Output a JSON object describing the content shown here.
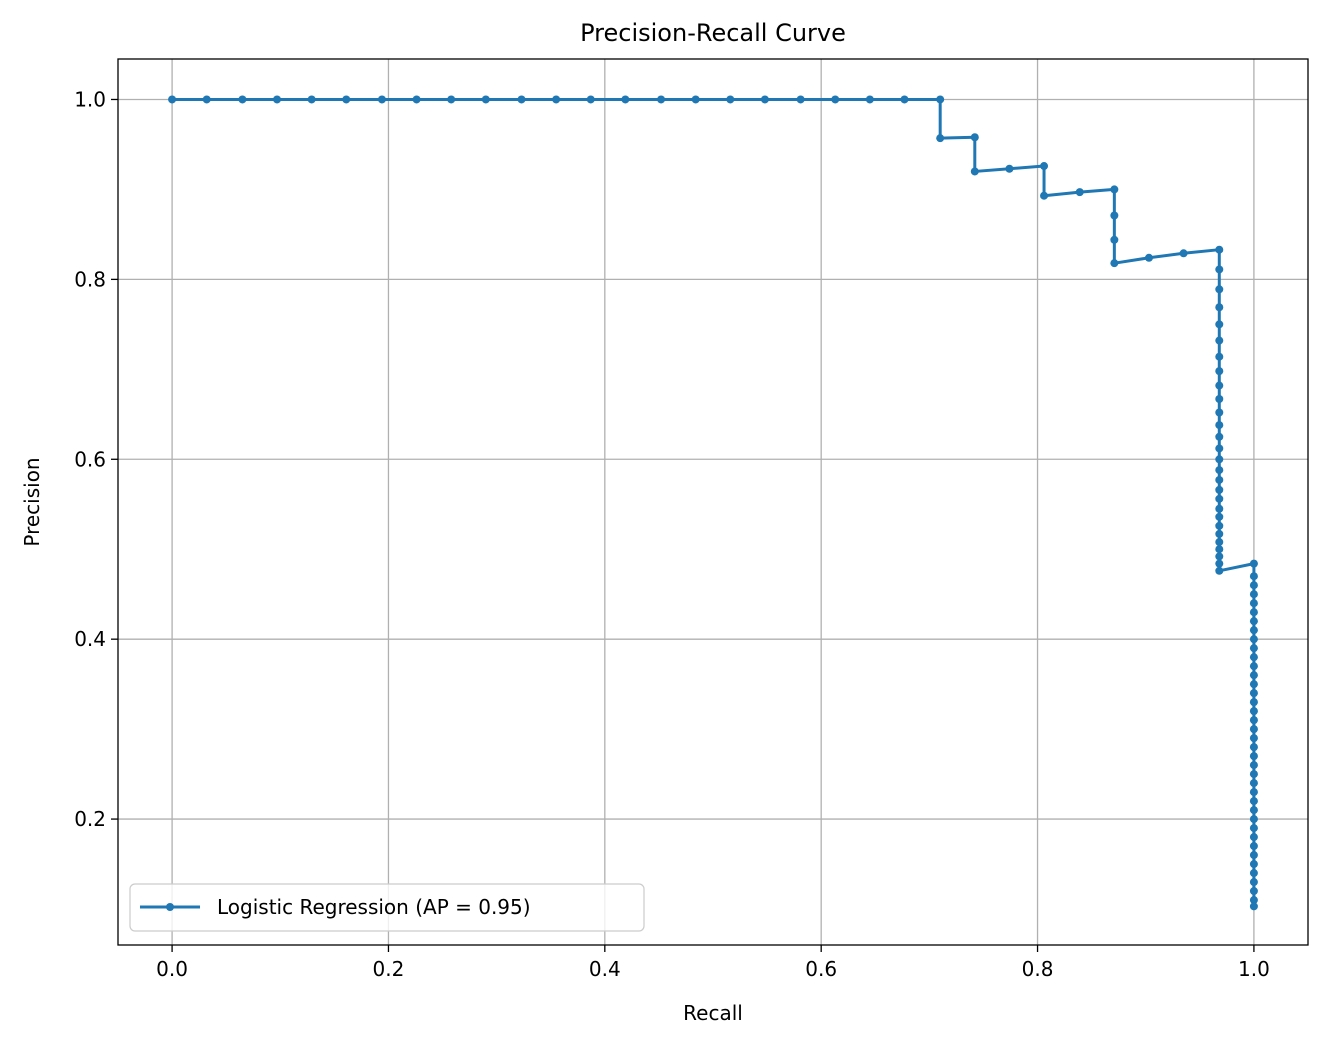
{
  "chart_data": {
    "type": "line",
    "title": "Precision-Recall Curve",
    "xlabel": "Recall",
    "ylabel": "Precision",
    "xlim": [
      -0.05,
      1.05
    ],
    "ylim": [
      0.06,
      1.045
    ],
    "xticks": [
      0.0,
      0.2,
      0.4,
      0.6,
      0.8,
      1.0
    ],
    "xtick_labels": [
      "0.0",
      "0.2",
      "0.4",
      "0.6",
      "0.8",
      "1.0"
    ],
    "yticks": [
      0.2,
      0.4,
      0.6,
      0.8,
      1.0
    ],
    "ytick_labels": [
      "0.2",
      "0.4",
      "0.6",
      "0.8",
      "1.0"
    ],
    "grid": true,
    "legend_position": "lower-left",
    "series": [
      {
        "name": "Logistic Regression (AP = 0.95)",
        "color": "#1f77b4",
        "marker": "circle",
        "points": [
          [
            0.0,
            1.0
          ],
          [
            0.032,
            1.0
          ],
          [
            0.065,
            1.0
          ],
          [
            0.097,
            1.0
          ],
          [
            0.129,
            1.0
          ],
          [
            0.161,
            1.0
          ],
          [
            0.194,
            1.0
          ],
          [
            0.226,
            1.0
          ],
          [
            0.258,
            1.0
          ],
          [
            0.29,
            1.0
          ],
          [
            0.323,
            1.0
          ],
          [
            0.355,
            1.0
          ],
          [
            0.387,
            1.0
          ],
          [
            0.419,
            1.0
          ],
          [
            0.452,
            1.0
          ],
          [
            0.484,
            1.0
          ],
          [
            0.516,
            1.0
          ],
          [
            0.548,
            1.0
          ],
          [
            0.581,
            1.0
          ],
          [
            0.613,
            1.0
          ],
          [
            0.645,
            1.0
          ],
          [
            0.677,
            1.0
          ],
          [
            0.71,
            1.0
          ],
          [
            0.71,
            0.957
          ],
          [
            0.742,
            0.958
          ],
          [
            0.742,
            0.92
          ],
          [
            0.774,
            0.923
          ],
          [
            0.806,
            0.926
          ],
          [
            0.806,
            0.893
          ],
          [
            0.839,
            0.897
          ],
          [
            0.871,
            0.9
          ],
          [
            0.871,
            0.871
          ],
          [
            0.871,
            0.844
          ],
          [
            0.871,
            0.818
          ],
          [
            0.903,
            0.824
          ],
          [
            0.935,
            0.829
          ],
          [
            0.968,
            0.833
          ],
          [
            0.968,
            0.811
          ],
          [
            0.968,
            0.789
          ],
          [
            0.968,
            0.769
          ],
          [
            0.968,
            0.75
          ],
          [
            0.968,
            0.732
          ],
          [
            0.968,
            0.714
          ],
          [
            0.968,
            0.698
          ],
          [
            0.968,
            0.682
          ],
          [
            0.968,
            0.667
          ],
          [
            0.968,
            0.652
          ],
          [
            0.968,
            0.638
          ],
          [
            0.968,
            0.625
          ],
          [
            0.968,
            0.612
          ],
          [
            0.968,
            0.6
          ],
          [
            0.968,
            0.588
          ],
          [
            0.968,
            0.577
          ],
          [
            0.968,
            0.566
          ],
          [
            0.968,
            0.556
          ],
          [
            0.968,
            0.545
          ],
          [
            0.968,
            0.536
          ],
          [
            0.968,
            0.526
          ],
          [
            0.968,
            0.517
          ],
          [
            0.968,
            0.508
          ],
          [
            0.968,
            0.5
          ],
          [
            0.968,
            0.492
          ],
          [
            0.968,
            0.484
          ],
          [
            0.968,
            0.476
          ],
          [
            1.0,
            0.484
          ],
          [
            1.0,
            0.47
          ],
          [
            1.0,
            0.46
          ],
          [
            1.0,
            0.45
          ],
          [
            1.0,
            0.44
          ],
          [
            1.0,
            0.43
          ],
          [
            1.0,
            0.42
          ],
          [
            1.0,
            0.41
          ],
          [
            1.0,
            0.4
          ],
          [
            1.0,
            0.39
          ],
          [
            1.0,
            0.38
          ],
          [
            1.0,
            0.37
          ],
          [
            1.0,
            0.36
          ],
          [
            1.0,
            0.35
          ],
          [
            1.0,
            0.34
          ],
          [
            1.0,
            0.33
          ],
          [
            1.0,
            0.32
          ],
          [
            1.0,
            0.31
          ],
          [
            1.0,
            0.3
          ],
          [
            1.0,
            0.29
          ],
          [
            1.0,
            0.28
          ],
          [
            1.0,
            0.27
          ],
          [
            1.0,
            0.26
          ],
          [
            1.0,
            0.25
          ],
          [
            1.0,
            0.24
          ],
          [
            1.0,
            0.23
          ],
          [
            1.0,
            0.22
          ],
          [
            1.0,
            0.21
          ],
          [
            1.0,
            0.2
          ],
          [
            1.0,
            0.19
          ],
          [
            1.0,
            0.18
          ],
          [
            1.0,
            0.17
          ],
          [
            1.0,
            0.16
          ],
          [
            1.0,
            0.15
          ],
          [
            1.0,
            0.14
          ],
          [
            1.0,
            0.13
          ],
          [
            1.0,
            0.12
          ],
          [
            1.0,
            0.11
          ],
          [
            1.0,
            0.103
          ]
        ]
      }
    ]
  }
}
